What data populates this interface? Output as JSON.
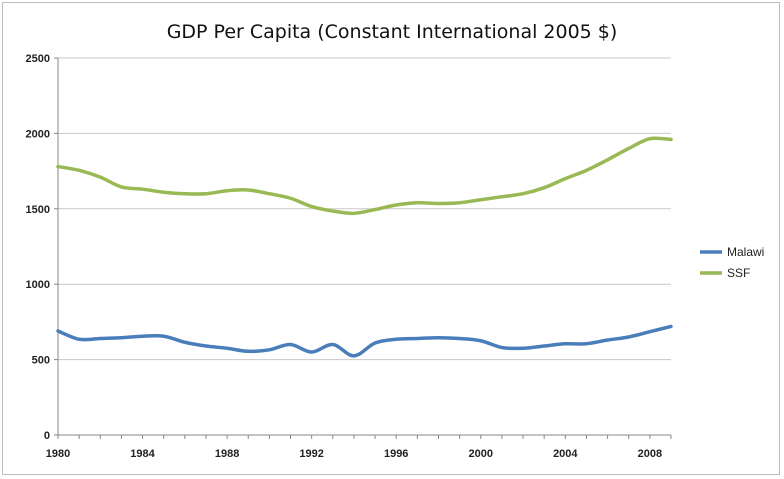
{
  "chart_data": {
    "type": "line",
    "title": "GDP Per Capita (Constant International 2005 $)",
    "xlabel": "",
    "ylabel": "",
    "xlim": [
      1980,
      2009
    ],
    "ylim": [
      0,
      2500
    ],
    "x_ticks": [
      1980,
      1984,
      1988,
      1992,
      1996,
      2000,
      2004,
      2008
    ],
    "y_ticks": [
      0,
      500,
      1000,
      1500,
      2000,
      2500
    ],
    "grid": "horizontal",
    "legend": "right",
    "x": [
      1980,
      1981,
      1982,
      1983,
      1984,
      1985,
      1986,
      1987,
      1988,
      1989,
      1990,
      1991,
      1992,
      1993,
      1994,
      1995,
      1996,
      1997,
      1998,
      1999,
      2000,
      2001,
      2002,
      2003,
      2004,
      2005,
      2006,
      2007,
      2008,
      2009
    ],
    "series": [
      {
        "name": "Malawi",
        "color": "#4a7ebb",
        "values": [
          690,
          635,
          640,
          645,
          655,
          655,
          615,
          590,
          575,
          555,
          565,
          600,
          550,
          600,
          525,
          610,
          635,
          640,
          645,
          640,
          625,
          580,
          575,
          590,
          605,
          605,
          630,
          650,
          685,
          720
        ]
      },
      {
        "name": "SSF",
        "color": "#98b954",
        "values": [
          1780,
          1755,
          1710,
          1645,
          1630,
          1610,
          1600,
          1600,
          1620,
          1625,
          1600,
          1570,
          1515,
          1485,
          1470,
          1495,
          1525,
          1540,
          1535,
          1540,
          1560,
          1580,
          1600,
          1640,
          1700,
          1755,
          1825,
          1900,
          1965,
          1960
        ]
      }
    ]
  }
}
